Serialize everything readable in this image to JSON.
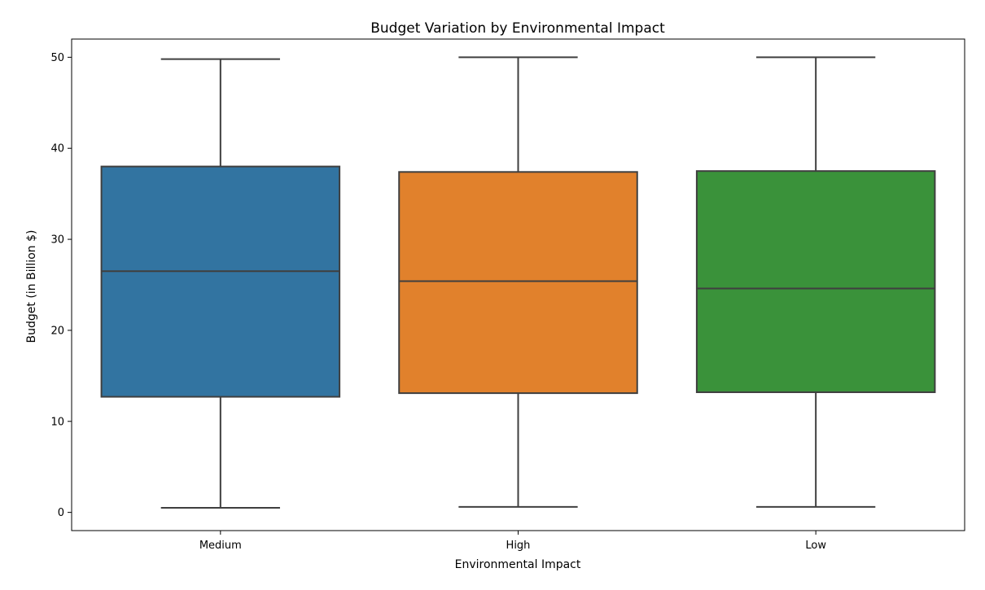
{
  "chart_data": {
    "type": "boxplot",
    "title": "Budget Variation by Environmental Impact",
    "xlabel": "Environmental Impact",
    "ylabel": "Budget (in Billion $)",
    "ylim": [
      -2,
      52
    ],
    "yticks": [
      0,
      10,
      20,
      30,
      40,
      50
    ],
    "categories": [
      "Medium",
      "High",
      "Low"
    ],
    "series": [
      {
        "name": "Medium",
        "min": 0.5,
        "q1": 12.7,
        "median": 26.5,
        "q3": 38.0,
        "max": 49.8,
        "color": "#3274a1"
      },
      {
        "name": "High",
        "min": 0.6,
        "q1": 13.1,
        "median": 25.4,
        "q3": 37.4,
        "max": 50.0,
        "color": "#e1812c"
      },
      {
        "name": "Low",
        "min": 0.6,
        "q1": 13.2,
        "median": 24.6,
        "q3": 37.5,
        "max": 50.0,
        "color": "#3a923a"
      }
    ],
    "grid": false,
    "legend": "none"
  }
}
